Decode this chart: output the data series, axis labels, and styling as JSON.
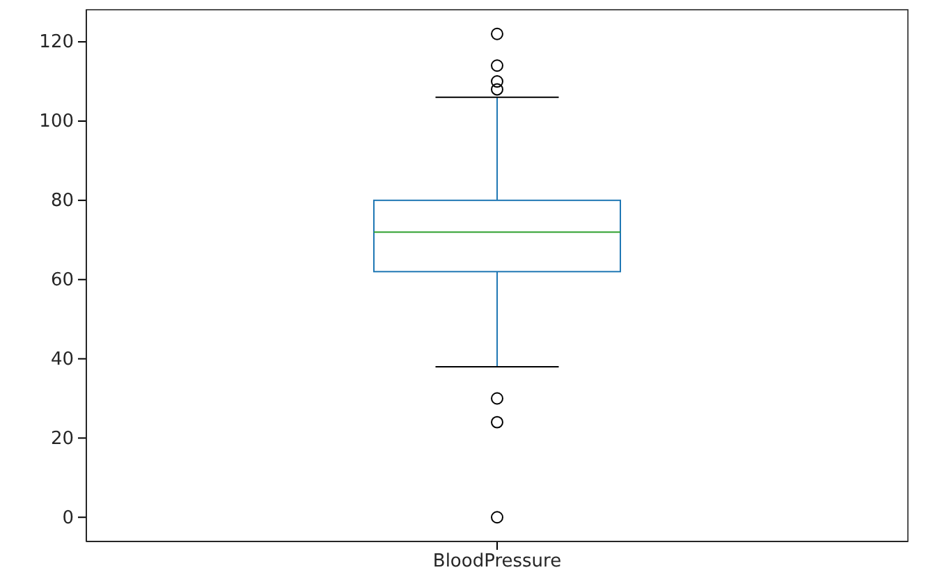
{
  "chart_data": {
    "type": "box",
    "categories": [
      "BloodPressure"
    ],
    "boxes": [
      {
        "low": 38,
        "q1": 62,
        "median": 72,
        "q3": 80,
        "high": 106,
        "outliers": [
          0,
          24,
          30,
          108,
          110,
          114,
          122
        ]
      }
    ],
    "color": "#1f77b4",
    "ylim": [
      -6.1,
      128.1
    ],
    "yticks": [
      0,
      20,
      40,
      60,
      80,
      100,
      120
    ],
    "grid": false,
    "marker": "circle"
  }
}
